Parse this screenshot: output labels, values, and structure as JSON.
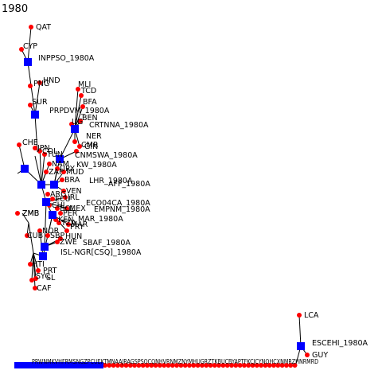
{
  "title": "1980",
  "colors": {
    "background": "#ffffff",
    "country_node": "#ff0000",
    "cluster_node": "#0000ff",
    "edge": "#000000",
    "text": "#000000"
  },
  "clusters": [
    {
      "id": "inppso",
      "label": "INPPSO_1980A",
      "members": [
        "QAT",
        "CYP",
        "HND",
        "PNG"
      ]
    },
    {
      "id": "prpd",
      "label": "PRPDVM_1980A",
      "members": [
        "SUR"
      ]
    },
    {
      "id": "crtnna",
      "label": "CRTNNA_1980A",
      "members": [
        "MLI",
        "TCD",
        "BFA",
        "BEN",
        "NER",
        "UG",
        "GIN"
      ]
    },
    {
      "id": "cnmswa",
      "label": "CNMSWA_1980A",
      "members": [
        "CMR"
      ]
    },
    {
      "id": "kw",
      "label": "KW_1980A",
      "members": [
        "CHE",
        "ZMB",
        "JPN",
        "COL",
        "TUN",
        "NAM"
      ]
    },
    {
      "id": "lhr",
      "label": "LHR_1980A",
      "members": [
        "ZAF",
        "URY",
        "MUD",
        "BRA"
      ]
    },
    {
      "id": "aff",
      "label": "AFF_1980A",
      "members": [
        "VEN",
        "IRL",
        "MEX"
      ]
    },
    {
      "id": "eco4ca",
      "label": "ECO04CA_1980A",
      "members": [
        "ARG",
        "ECU",
        "CHL"
      ]
    },
    {
      "id": "empnm",
      "label": "EMPNM_1980A",
      "members": [
        "BOL",
        "PER"
      ]
    },
    {
      "id": "mar",
      "label": "MAR_1980A",
      "members": [
        "KEN",
        "TZA",
        "MAR"
      ]
    },
    {
      "id": "sbaf",
      "label": "SBAF_1980A",
      "members": [
        "PRY",
        "HUN",
        "ZWE",
        "SBP"
      ]
    },
    {
      "id": "isl",
      "label": "ISL-NGR[CSQ]_1980A",
      "members": [
        "CUB",
        "ZMB",
        "NOR",
        "HTI",
        "PRT",
        "SYC",
        "SL",
        "CAF"
      ]
    },
    {
      "id": "escehi",
      "label": "ESCEHI_1980A",
      "members": [
        "LCA",
        "GUY"
      ]
    }
  ],
  "bottom_strip": {
    "text": "PRWNMKVHFRMSNGZPCUEKTMNAAJRAGSPSOCQNHVRNMZNYMHUGRZTKBUCBYAPTFKCJCYNOHCXNMRZHNRMRD"
  }
}
